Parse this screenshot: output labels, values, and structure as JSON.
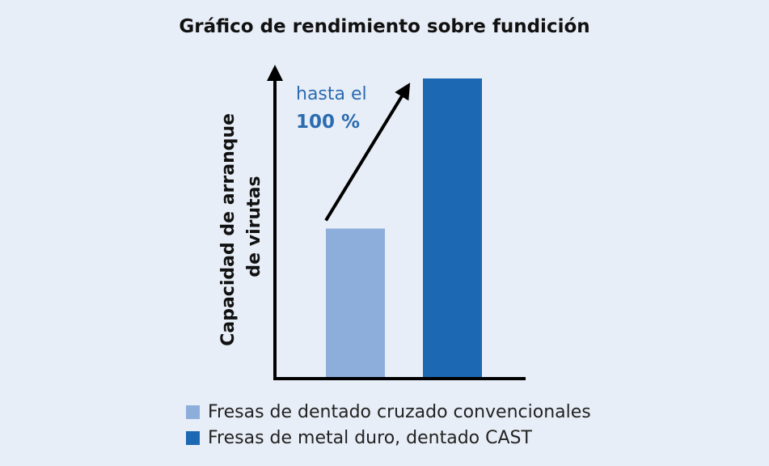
{
  "title": "Gráfico de rendimiento sobre fundición",
  "colors": {
    "background": "#e8eef7",
    "series_conventional": "#8daedb",
    "series_cast": "#1c68b3",
    "annotation": "#2b6cb0",
    "axis": "#000000"
  },
  "chart_data": {
    "type": "bar",
    "title": "Gráfico de rendimiento sobre fundición",
    "ylabel": "Capacidad de arranque de virutas",
    "ylabel_lines": [
      "Capacidad de arranque",
      "de virutas"
    ],
    "xlabel": "",
    "categories": [
      "Fresas de dentado cruzado convencionales",
      "Fresas de metal duro, dentado CAST"
    ],
    "values": [
      50,
      100
    ],
    "ylim": [
      0,
      100
    ],
    "axis_ticks": false,
    "grid": false,
    "legend_position": "bottom",
    "annotation": {
      "line1": "hasta el",
      "line2": "100 %",
      "arrow_from_category": 0,
      "arrow_to_category": 1
    }
  }
}
